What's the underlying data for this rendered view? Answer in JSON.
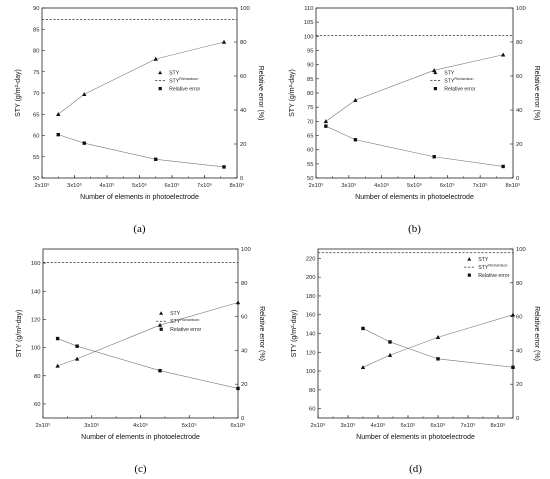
{
  "figure": {
    "panels": [
      "(a)",
      "(b)",
      "(c)",
      "(d)"
    ]
  },
  "chart_data": [
    {
      "type": "line",
      "panel_label": "(a)",
      "xlabel": "Number of elements in photoelectrode",
      "ylabel": "STY (g/m²-day)",
      "ylabel_right": "Relative error (%)",
      "xlim": [
        200000,
        800000
      ],
      "ylim": [
        50,
        90
      ],
      "ylim_right": [
        0,
        100
      ],
      "x_ticks": [
        "2x10⁵",
        "3x10⁵",
        "4x10⁵",
        "5x10⁵",
        "6x10⁵",
        "7x10⁵",
        "8x10⁵"
      ],
      "y_ticks": [
        "50",
        "55",
        "60",
        "65",
        "70",
        "75",
        "80",
        "85",
        "90"
      ],
      "y_right_ticks": [
        "0",
        "20",
        "40",
        "60",
        "80",
        "100"
      ],
      "legend": [
        "STY",
        "STY^Richardson",
        "Relative error"
      ],
      "legend_position": "right-middle",
      "series": [
        {
          "name": "STY",
          "marker": "triangle",
          "axis": "left",
          "x": [
            250000,
            330000,
            550000,
            760000
          ],
          "values": [
            65.0,
            69.7,
            78.0,
            82.0
          ]
        },
        {
          "name": "STY^Richardson",
          "style": "dashed",
          "axis": "left",
          "x": [
            200000,
            800000
          ],
          "values": [
            87.3,
            87.3
          ]
        },
        {
          "name": "Relative error",
          "marker": "square",
          "axis": "right",
          "x": [
            250000,
            330000,
            550000,
            760000
          ],
          "values": [
            25.5,
            20.5,
            11.0,
            6.5
          ]
        }
      ]
    },
    {
      "type": "line",
      "panel_label": "(b)",
      "xlabel": "Number of elements in photoelectrode",
      "ylabel": "STY (g/m²-day)",
      "ylabel_right": "Relative error (%)",
      "xlim": [
        200000,
        800000
      ],
      "ylim": [
        50,
        110
      ],
      "ylim_right": [
        0,
        100
      ],
      "x_ticks": [
        "2x10⁵",
        "3x10⁵",
        "4x10⁵",
        "5x10⁵",
        "6x10⁵",
        "7x10⁵",
        "8x10⁵"
      ],
      "y_ticks": [
        "50",
        "55",
        "60",
        "65",
        "70",
        "75",
        "80",
        "85",
        "90",
        "95",
        "100",
        "105",
        "110"
      ],
      "y_right_ticks": [
        "0",
        "20",
        "40",
        "60",
        "80",
        "100"
      ],
      "legend": [
        "STY",
        "STY^Richardson",
        "Relative error"
      ],
      "legend_position": "right-middle",
      "series": [
        {
          "name": "STY",
          "marker": "triangle",
          "axis": "left",
          "x": [
            230000,
            320000,
            560000,
            770000
          ],
          "values": [
            70.0,
            77.5,
            88.0,
            93.5
          ]
        },
        {
          "name": "STY^Richardson",
          "style": "dashed",
          "axis": "left",
          "x": [
            200000,
            800000
          ],
          "values": [
            100.3,
            100.3
          ]
        },
        {
          "name": "Relative error",
          "marker": "square",
          "axis": "right",
          "x": [
            230000,
            320000,
            560000,
            770000
          ],
          "values": [
            30.5,
            22.5,
            12.5,
            6.8
          ]
        }
      ]
    },
    {
      "type": "line",
      "panel_label": "(c)",
      "xlabel": "Number of elements in photoelectrode",
      "ylabel": "STY (g/m²-day)",
      "ylabel_right": "Relative error (%)",
      "xlim": [
        200000,
        600000
      ],
      "ylim": [
        50,
        170
      ],
      "ylim_right": [
        0,
        100
      ],
      "x_ticks": [
        "2x10⁵",
        "3x10⁵",
        "4x10⁵",
        "5x10⁵",
        "6x10⁵"
      ],
      "y_ticks": [
        "60",
        "80",
        "100",
        "120",
        "140",
        "160"
      ],
      "y_right_ticks": [
        "0",
        "20",
        "40",
        "60",
        "80",
        "100"
      ],
      "legend": [
        "STY",
        "STY^Richardson",
        "Relative error"
      ],
      "legend_position": "right-middle",
      "series": [
        {
          "name": "STY",
          "marker": "triangle",
          "axis": "left",
          "x": [
            230000,
            270000,
            440000,
            600000
          ],
          "values": [
            87,
            92,
            116,
            132
          ]
        },
        {
          "name": "STY^Richardson",
          "style": "dashed",
          "axis": "left",
          "x": [
            200000,
            600000
          ],
          "values": [
            160.5,
            160.5
          ]
        },
        {
          "name": "Relative error",
          "marker": "square",
          "axis": "right",
          "x": [
            230000,
            270000,
            440000,
            600000
          ],
          "values": [
            47,
            42.5,
            28,
            17.5
          ]
        }
      ]
    },
    {
      "type": "line",
      "panel_label": "(d)",
      "xlabel": "Number of elements in photoelectrode",
      "ylabel": "STY (g/m²-day)",
      "ylabel_right": "Relative error (%)",
      "xlim": [
        200000,
        850000
      ],
      "ylim": [
        50,
        230
      ],
      "ylim_right": [
        0,
        100
      ],
      "x_ticks": [
        "2x10⁵",
        "3x10⁵",
        "4x10⁵",
        "5x10⁵",
        "6x10⁵",
        "7x10⁵",
        "8x10⁵"
      ],
      "y_ticks": [
        "60",
        "80",
        "100",
        "120",
        "140",
        "160",
        "180",
        "200",
        "220"
      ],
      "y_right_ticks": [
        "0",
        "20",
        "40",
        "60",
        "80",
        "100"
      ],
      "legend": [
        "STY",
        "STY^Richardson",
        "Relative error"
      ],
      "legend_position": "top-right",
      "series": [
        {
          "name": "STY",
          "marker": "triangle",
          "axis": "left",
          "x": [
            350000,
            440000,
            600000,
            850000
          ],
          "values": [
            104,
            117,
            136,
            160
          ]
        },
        {
          "name": "STY^Richardson",
          "style": "dashed",
          "axis": "left",
          "x": [
            200000,
            850000
          ],
          "values": [
            226,
            226
          ]
        },
        {
          "name": "Relative error",
          "marker": "square",
          "axis": "right",
          "x": [
            350000,
            440000,
            600000,
            850000
          ],
          "values": [
            53,
            45,
            35,
            30
          ]
        }
      ]
    }
  ]
}
